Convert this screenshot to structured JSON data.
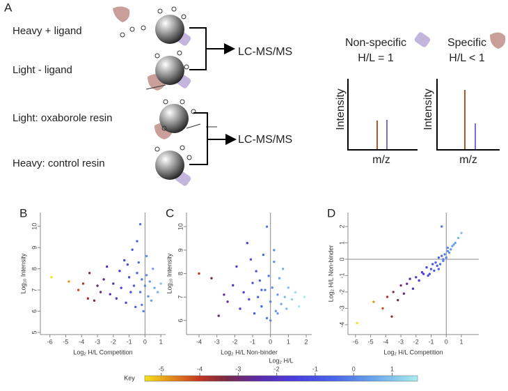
{
  "schematic": {
    "panel": "A",
    "conditions": [
      {
        "label": "Heavy + ligand",
        "color": "#7b6be0"
      },
      {
        "label": "Light - ligand",
        "color": "#b5532b"
      },
      {
        "label": "Light: oxaborole resin",
        "color": "#b5532b"
      },
      {
        "label": "Heavy: control resin",
        "color": "#7b6be0"
      }
    ],
    "ms_labels": [
      "LC-MS/MS",
      "LC-MS/MS"
    ],
    "nonspecific": {
      "title": "Non-specific",
      "ratio": "H/L = 1"
    },
    "specific": {
      "title": "Specific",
      "ratio": "H/L < 1"
    },
    "spectra": {
      "y_label": "Intensity",
      "x_label": "m/z"
    }
  },
  "chart_data": [
    {
      "type": "scatter",
      "panel": "B",
      "x_label": "Log₂ H/L Competition",
      "y_label": "Log₁₀ Intensity",
      "x": [
        -5.9,
        -4.8,
        -4.2,
        -3.9,
        -3.6,
        -3.5,
        -3.2,
        -3.0,
        -2.8,
        -2.6,
        -2.4,
        -2.2,
        -2.0,
        -1.8,
        -1.6,
        -1.5,
        -1.3,
        -1.2,
        -1.0,
        -0.9,
        -0.8,
        -0.7,
        -0.6,
        -0.5,
        -0.4,
        -0.3,
        -0.2,
        -0.1,
        0,
        0.1,
        0.2,
        0.3,
        0.4,
        0.5,
        0.6,
        0.8,
        1.0,
        -0.5,
        -0.2,
        0.1,
        -1.1,
        -0.3
      ],
      "y": [
        7.6,
        7.4,
        7.0,
        7.3,
        6.6,
        7.8,
        6.5,
        7.2,
        6.9,
        7.5,
        8.1,
        6.8,
        7.3,
        6.6,
        7.9,
        7.1,
        8.4,
        6.4,
        7.6,
        6.9,
        8.9,
        7.2,
        6.2,
        7.8,
        8.3,
        6.9,
        7.5,
        6.0,
        7.2,
        8.6,
        6.7,
        7.4,
        6.5,
        8.0,
        7.1,
        6.9,
        7.3,
        9.3,
        6.3,
        7.7,
        8.2,
        10.1
      ],
      "xlim": [
        -6.6,
        1.3
      ],
      "ylim": [
        4.9,
        10.65
      ],
      "xticks": [
        -6,
        -5,
        -4,
        -3,
        -2,
        -1,
        0,
        1
      ],
      "yticks": [
        5,
        6,
        7,
        8,
        9,
        10
      ],
      "vline": 0
    },
    {
      "type": "scatter",
      "panel": "C",
      "x_label": "Log₂ H/L Non-binder",
      "y_label": "Log₁₀ Intensity",
      "x": [
        -4.0,
        -3.3,
        -2.9,
        -2.6,
        -2.4,
        -2.1,
        -1.9,
        -1.7,
        -1.5,
        -1.3,
        -1.2,
        -1.0,
        -0.9,
        -0.8,
        -0.7,
        -0.6,
        -0.5,
        -0.4,
        -0.3,
        -0.2,
        -0.1,
        0,
        0.1,
        0.2,
        0.3,
        0.4,
        0.5,
        0.6,
        0.7,
        0.8,
        0.9,
        1.0,
        1.2,
        1.4,
        1.6,
        1.9,
        -0.5,
        0.2,
        0.0,
        -1.1,
        0.4,
        -0.2
      ],
      "y": [
        8.0,
        7.8,
        6.2,
        7.1,
        6.8,
        7.5,
        8.3,
        6.5,
        7.2,
        9.3,
        6.9,
        7.6,
        6.3,
        8.1,
        7.0,
        7.7,
        6.6,
        8.8,
        7.3,
        6.1,
        7.9,
        6.8,
        7.4,
        8.5,
        6.4,
        7.1,
        7.8,
        6.7,
        8.2,
        7.0,
        6.5,
        7.4,
        6.9,
        7.2,
        6.6,
        7.0,
        7.3,
        9.0,
        6.0,
        8.6,
        6.3,
        10.0
      ],
      "xlim": [
        -4.7,
        2.31
      ],
      "ylim": [
        5.4,
        10.6
      ],
      "xticks": [
        -4,
        -3,
        -2,
        -1,
        0,
        1,
        2
      ],
      "yticks": [
        6,
        7,
        8,
        9,
        10
      ],
      "vline": 0
    },
    {
      "type": "scatter",
      "panel": "D",
      "x_label": "Log₂ H/L Competition",
      "y_label": "Log₂ H/L Non-binder",
      "x": [
        -5.9,
        -4.8,
        -4.2,
        -3.9,
        -3.6,
        -3.5,
        -3.2,
        -3.0,
        -2.8,
        -2.6,
        -2.4,
        -2.2,
        -2.0,
        -1.8,
        -1.6,
        -1.5,
        -1.3,
        -1.2,
        -1.0,
        -0.9,
        -0.8,
        -0.7,
        -0.6,
        -0.5,
        -0.4,
        -0.3,
        -0.2,
        -0.1,
        0,
        0.1,
        0.2,
        0.3,
        0.4,
        0.5,
        0.6,
        0.8,
        1.0,
        -0.5,
        -0.2,
        0.1,
        -1.1,
        -0.3
      ],
      "y": [
        -3.9,
        -2.6,
        -3.0,
        -2.3,
        -3.5,
        -2.0,
        -2.5,
        -1.6,
        -2.1,
        -1.5,
        -1.2,
        -1.8,
        -1.1,
        -1.3,
        -0.8,
        -0.9,
        -0.5,
        -1.0,
        -0.6,
        -0.3,
        -0.7,
        -0.2,
        -0.4,
        0.1,
        -0.3,
        0.2,
        -0.1,
        0.3,
        0.1,
        0.5,
        0.4,
        0.6,
        0.8,
        0.9,
        1.0,
        1.3,
        1.6,
        -0.6,
        0.0,
        0.7,
        -0.9,
        2.0
      ],
      "xlim": [
        -6.5,
        2.15
      ],
      "ylim": [
        -4.6,
        2.85
      ],
      "xticks": [
        -6,
        -5,
        -4,
        -3,
        -2,
        -1,
        0,
        1
      ],
      "yticks": [
        -4,
        -3,
        -2,
        -1,
        0,
        1,
        2
      ],
      "vline": 0,
      "hline": 0
    },
    {
      "type": "colorbar",
      "title": "Log₂ H/L",
      "label": "Key",
      "xlim": [
        -5.43,
        1.66
      ],
      "xticks": [
        -5,
        -4,
        -3,
        -2,
        -1,
        0,
        1
      ],
      "colorscale": [
        [
          -5.43,
          "#f2e11a"
        ],
        [
          -4.6,
          "#e07b1c"
        ],
        [
          -4,
          "#c0361f"
        ],
        [
          -3.3,
          "#7a2a45"
        ],
        [
          -2.5,
          "#5a2aa8"
        ],
        [
          -1.5,
          "#4a3ee0"
        ],
        [
          -0.5,
          "#4a66e8"
        ],
        [
          0.5,
          "#6aa4ea"
        ],
        [
          1.66,
          "#a8ecf0"
        ]
      ]
    }
  ]
}
